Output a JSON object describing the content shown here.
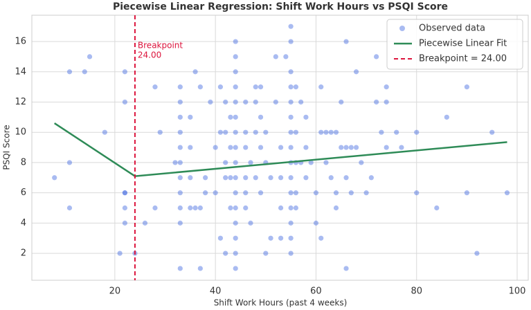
{
  "chart_data": {
    "type": "scatter",
    "title": "Piecewise Linear Regression: Shift Work Hours vs PSQI Score",
    "x_label": "Shift Work Hours (past 4 weeks)",
    "y_label": "PSQI Score",
    "xlim": [
      3.5,
      102.2
    ],
    "ylim": [
      0.22,
      17.74
    ],
    "xticks": [
      20,
      40,
      60,
      80,
      100
    ],
    "yticks": [
      2,
      4,
      6,
      8,
      10,
      12,
      14,
      16
    ],
    "grid": true,
    "legend": "upper right",
    "series": [
      {
        "name": "Observed data",
        "type": "scatter",
        "color": "#4169e1",
        "x": [
          8,
          11,
          11,
          11,
          14,
          15,
          18,
          21,
          22,
          22,
          22,
          22,
          22,
          22,
          24,
          26,
          28,
          28,
          29,
          32,
          33,
          33,
          33,
          33,
          33,
          33,
          33,
          33,
          33,
          33,
          33,
          35,
          35,
          35,
          35,
          36,
          36,
          37,
          37,
          37,
          38,
          38,
          39,
          40,
          40,
          41,
          41,
          41,
          42,
          42,
          42,
          42,
          42,
          43,
          43,
          43,
          43,
          44,
          44,
          44,
          44,
          44,
          44,
          44,
          44,
          44,
          44,
          44,
          44,
          44,
          44,
          44,
          44,
          46,
          46,
          46,
          46,
          46,
          46,
          47,
          47,
          48,
          48,
          48,
          48,
          49,
          49,
          49,
          49,
          50,
          50,
          50,
          51,
          51,
          52,
          52,
          53,
          53,
          53,
          53,
          54,
          55,
          55,
          55,
          55,
          55,
          55,
          55,
          55,
          55,
          55,
          55,
          55,
          55,
          55,
          55,
          56,
          56,
          56,
          56,
          56,
          57,
          57,
          58,
          58,
          58,
          59,
          60,
          60,
          61,
          61,
          61,
          62,
          62,
          63,
          63,
          64,
          64,
          64,
          65,
          65,
          66,
          66,
          66,
          66,
          67,
          67,
          68,
          68,
          69,
          70,
          71,
          72,
          72,
          73,
          74,
          74,
          74,
          76,
          77,
          80,
          80,
          84,
          86,
          90,
          90,
          92,
          95,
          98
        ],
        "values": [
          7,
          14,
          8,
          5,
          14,
          15,
          10,
          2,
          14,
          12,
          6,
          6,
          5,
          4,
          2,
          4,
          5,
          13,
          10,
          8,
          13,
          12,
          11,
          10,
          9,
          8,
          7,
          6,
          5,
          4,
          1,
          11,
          9,
          7,
          5,
          14,
          5,
          13,
          5,
          1,
          7,
          6,
          12,
          9,
          6,
          13,
          10,
          3,
          12,
          10,
          8,
          7,
          2,
          11,
          9,
          7,
          5,
          16,
          15,
          14,
          13,
          12,
          11,
          10,
          9,
          8,
          7,
          6,
          5,
          4,
          3,
          2,
          1,
          12,
          10,
          9,
          7,
          6,
          5,
          8,
          4,
          13,
          12,
          10,
          7,
          13,
          11,
          9,
          6,
          10,
          8,
          2,
          7,
          3,
          15,
          12,
          9,
          7,
          5,
          3,
          15,
          17,
          16,
          14,
          13,
          12,
          11,
          10,
          9,
          8,
          7,
          6,
          5,
          4,
          3,
          2,
          13,
          10,
          8,
          6,
          5,
          12,
          8,
          11,
          9,
          7,
          8,
          4,
          6,
          13,
          10,
          3,
          10,
          8,
          10,
          7,
          10,
          6,
          5,
          12,
          9,
          16,
          9,
          7,
          1,
          9,
          6,
          14,
          9,
          8,
          6,
          7,
          15,
          12,
          10,
          13,
          12,
          9,
          10,
          9,
          10,
          6,
          5,
          11,
          13,
          6,
          2,
          10,
          6
        ]
      },
      {
        "name": "Piecewise Linear Fit",
        "type": "line",
        "color": "#2e8b57",
        "x": [
          8,
          24,
          98
        ],
        "values": [
          10.6,
          7.1,
          9.35
        ]
      }
    ],
    "breakpoint": {
      "name": "Breakpoint = 24.00",
      "value": 24,
      "color": "#dc143c",
      "label": [
        "Breakpoint",
        "24.00"
      ]
    }
  }
}
